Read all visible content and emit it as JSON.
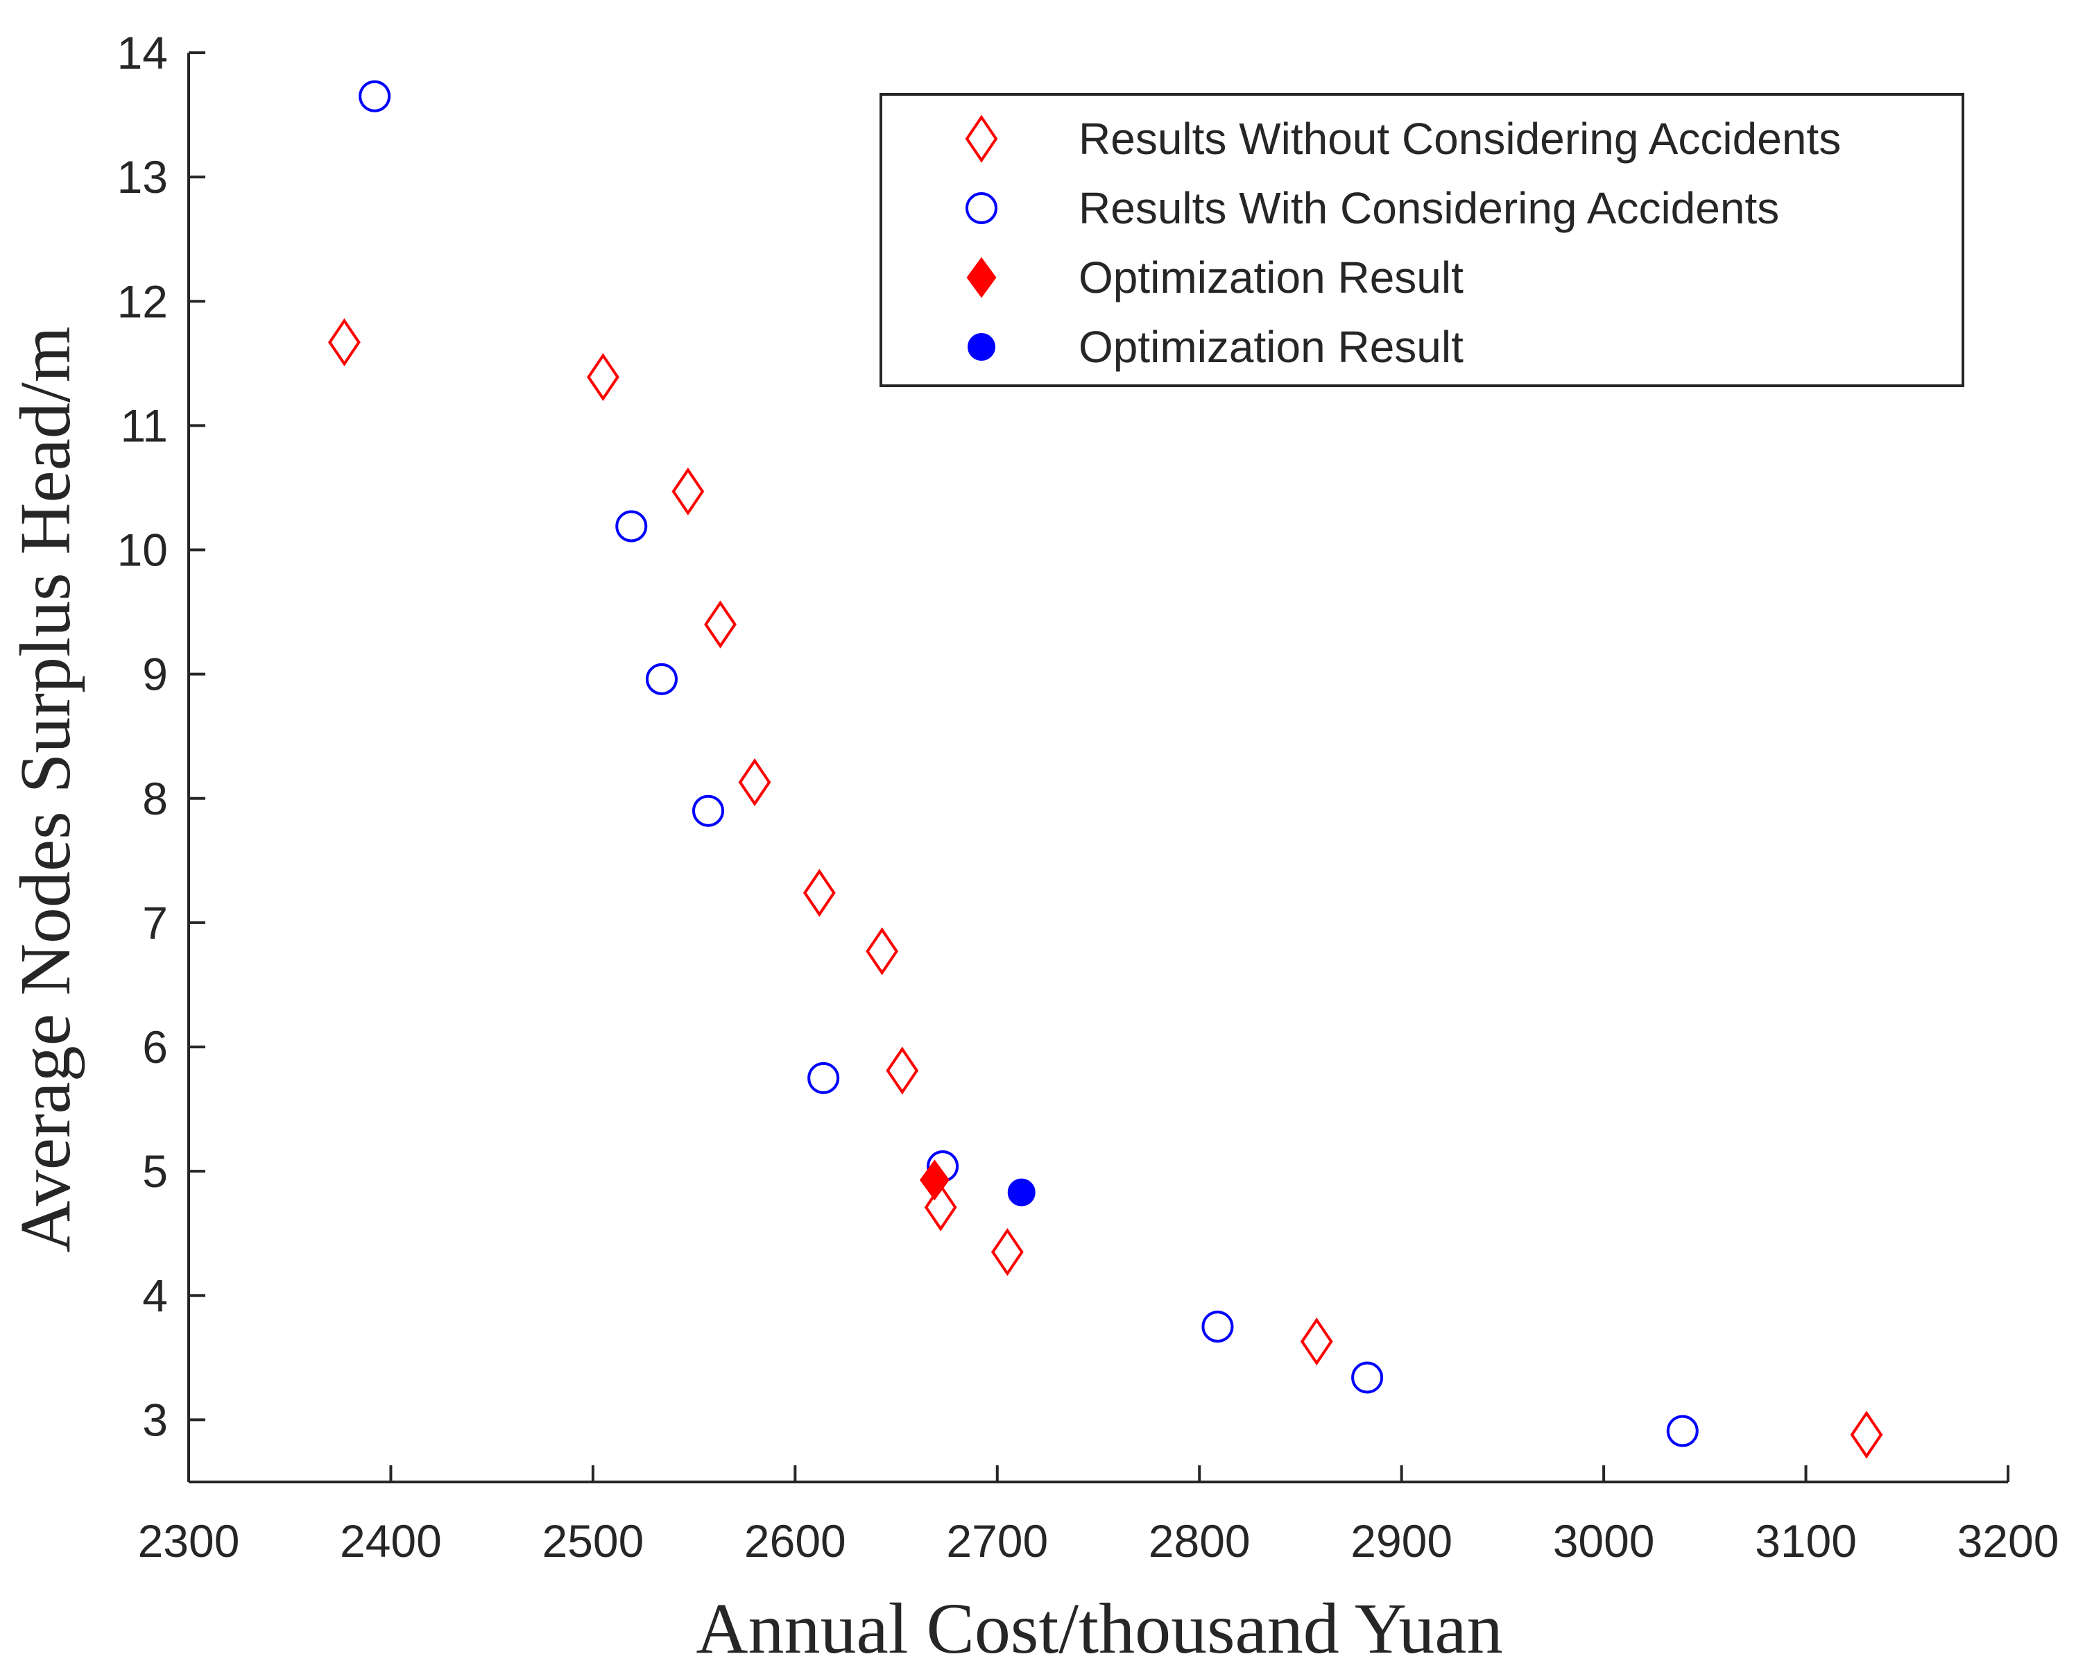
{
  "chart_data": {
    "type": "scatter",
    "title": "",
    "xlabel": "Annual Cost/thousand Yuan",
    "ylabel": "Average Nodes Surplus Head/m",
    "xlim": [
      2300,
      3200
    ],
    "ylim": [
      2.5,
      14
    ],
    "xticks": [
      2300,
      2400,
      2500,
      2600,
      2700,
      2800,
      2900,
      3000,
      3100,
      3200
    ],
    "yticks": [
      3,
      4,
      5,
      6,
      7,
      8,
      9,
      10,
      11,
      12,
      13,
      14
    ],
    "grid": false,
    "legend_position": "top-right",
    "colors": {
      "red": "#ff0000",
      "blue": "#0000ff",
      "axis": "#262626"
    },
    "series": [
      {
        "name": "Results Without Considering Accidents",
        "marker": "diamond-open",
        "color": "#ff0000",
        "points": [
          [
            2377,
            11.67
          ],
          [
            2505,
            11.39
          ],
          [
            2547,
            10.47
          ],
          [
            2563,
            9.4
          ],
          [
            2580,
            8.13
          ],
          [
            2612,
            7.24
          ],
          [
            2643,
            6.77
          ],
          [
            2653,
            5.81
          ],
          [
            2672,
            4.71
          ],
          [
            2705,
            4.35
          ],
          [
            2858,
            3.63
          ],
          [
            3130,
            2.88
          ]
        ]
      },
      {
        "name": "Results With Considering Accidents",
        "marker": "circle-open",
        "color": "#0000ff",
        "points": [
          [
            2392,
            13.65
          ],
          [
            2519,
            10.19
          ],
          [
            2534,
            8.96
          ],
          [
            2557,
            7.9
          ],
          [
            2614,
            5.75
          ],
          [
            2673,
            5.04
          ],
          [
            2809,
            3.75
          ],
          [
            2883,
            3.34
          ],
          [
            3039,
            2.91
          ]
        ]
      },
      {
        "name": "Optimization Result",
        "marker": "diamond-filled",
        "color": "#ff0000",
        "points": [
          [
            2669,
            4.93
          ]
        ]
      },
      {
        "name": "Optimization Result",
        "marker": "circle-filled",
        "color": "#0000ff",
        "points": [
          [
            2712,
            4.83
          ]
        ]
      }
    ]
  }
}
